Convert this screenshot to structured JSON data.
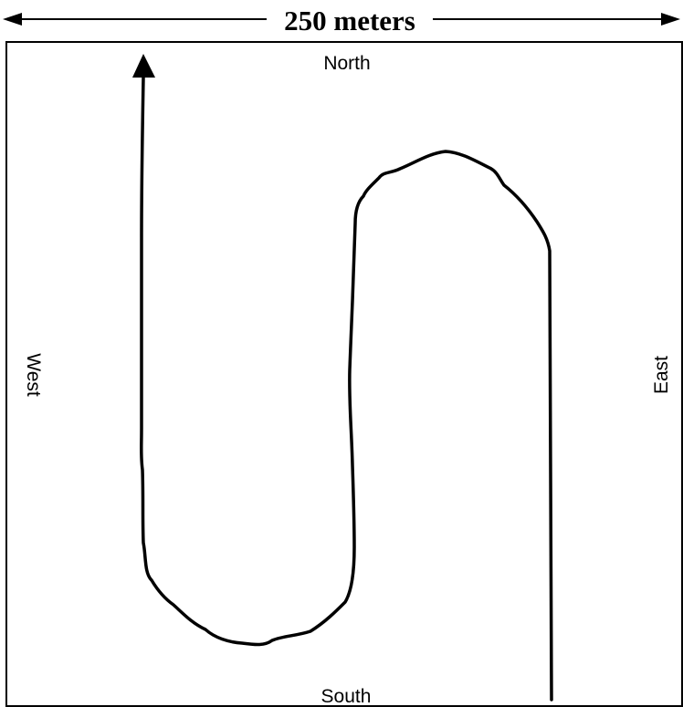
{
  "scale": {
    "label": "250 meters"
  },
  "directions": {
    "north": "North",
    "south": "South",
    "west": "West",
    "east": "East"
  },
  "colors": {
    "stroke": "#000000",
    "background": "#ffffff"
  }
}
